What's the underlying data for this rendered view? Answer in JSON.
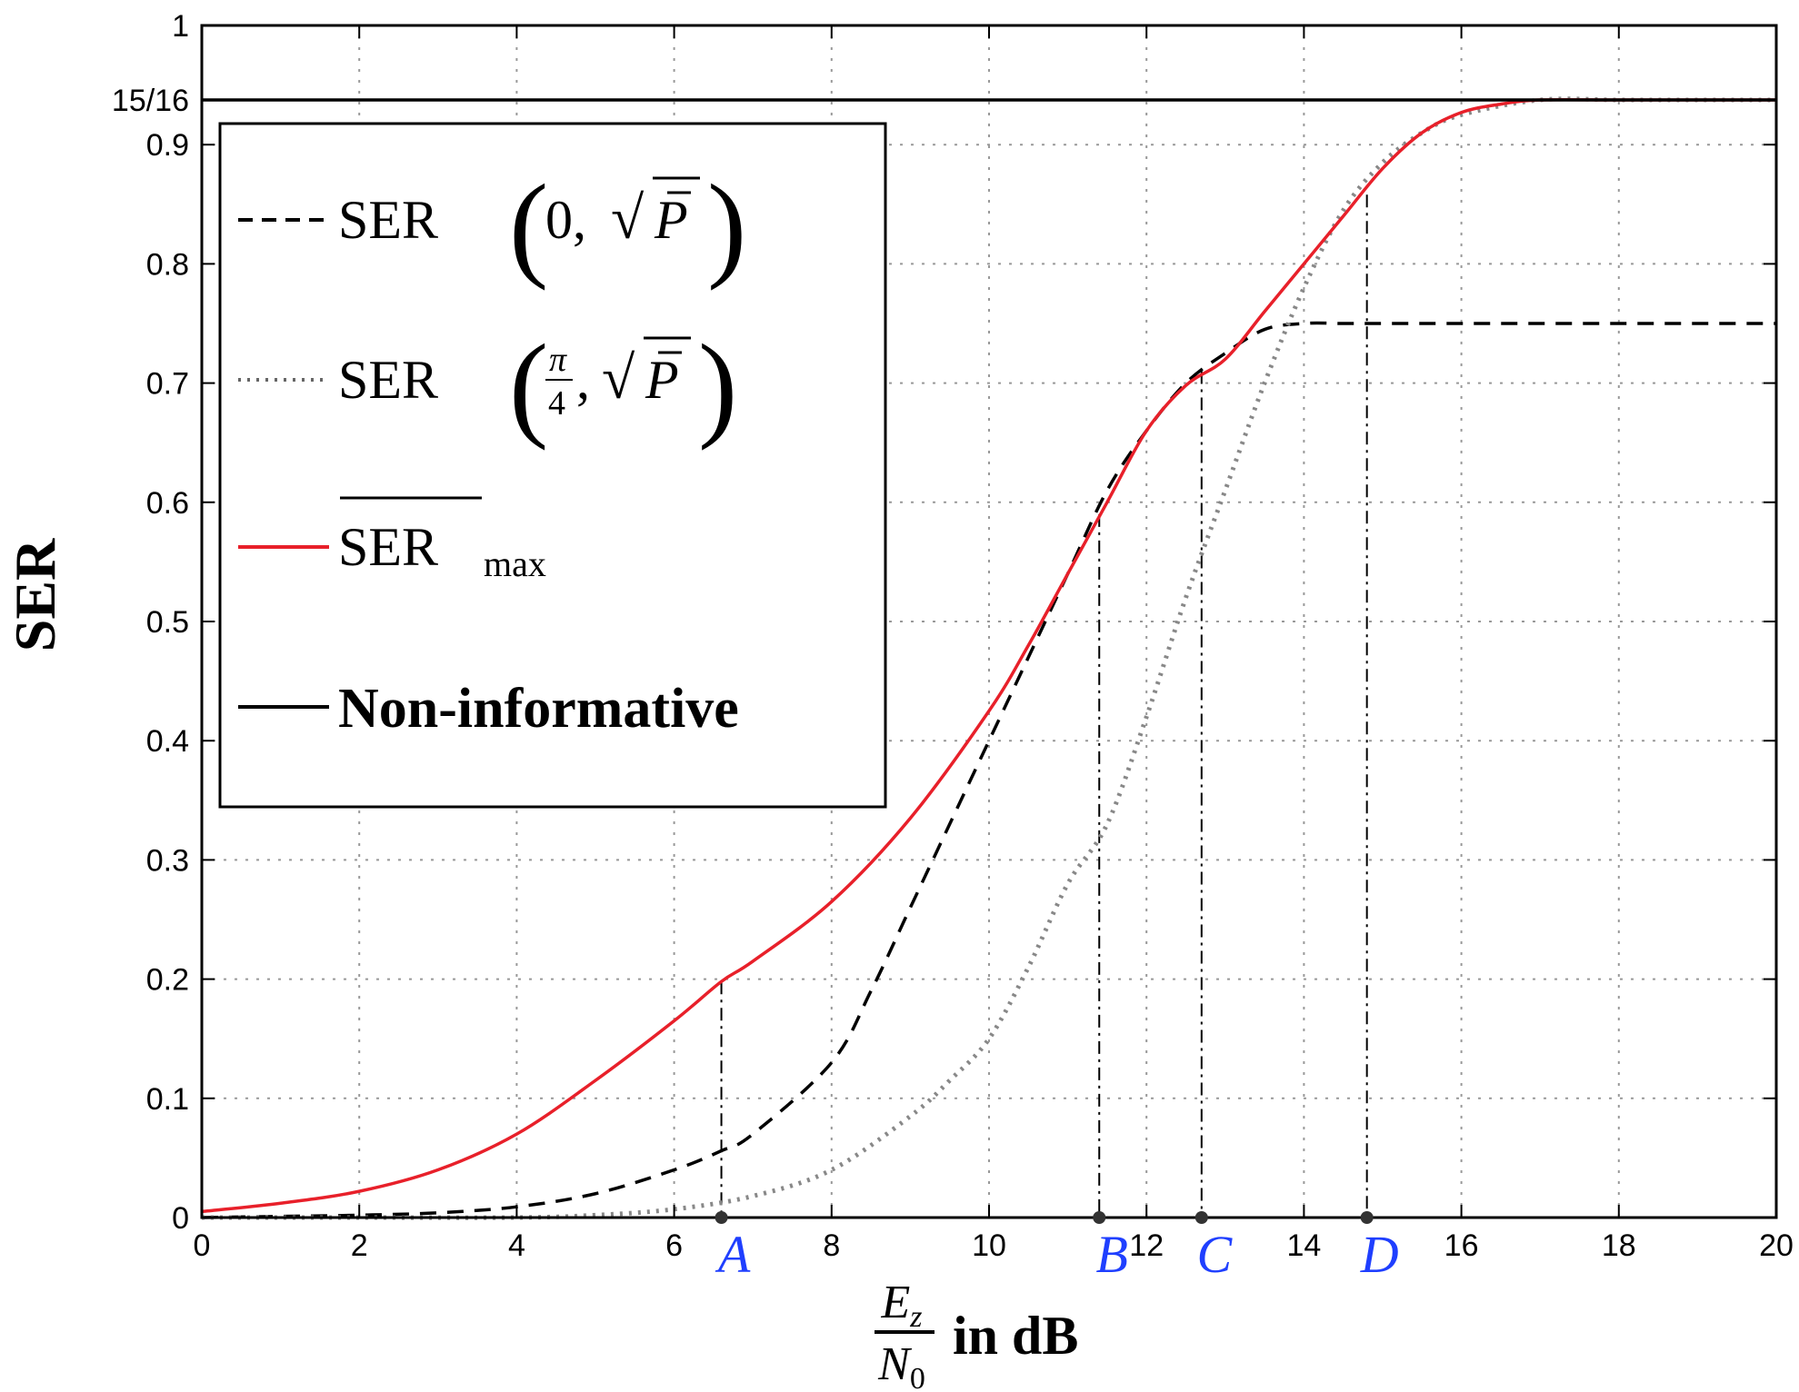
{
  "chart_data": {
    "type": "line",
    "ylabel": "SER",
    "xlabel_frac_num": "E",
    "xlabel_frac_num_sub": "z",
    "xlabel_frac_den": "N",
    "xlabel_frac_den_sub": "0",
    "xlabel_suffix": "in dB",
    "xlim": [
      0,
      20
    ],
    "ylim": [
      0,
      1
    ],
    "grid": true,
    "legend_position": "top-left",
    "xticks": [
      0,
      2,
      4,
      6,
      8,
      10,
      12,
      14,
      16,
      18,
      20
    ],
    "yticks": [
      0,
      0.1,
      0.2,
      0.3,
      0.4,
      0.5,
      0.6,
      0.7,
      0.8,
      0.9,
      1
    ],
    "ytick_labels": [
      "0",
      "0.1",
      "0.2",
      "0.3",
      "0.4",
      "0.5",
      "0.6",
      "0.7",
      "0.8",
      "0.9",
      "1"
    ],
    "xtick_labels": [
      "0",
      "2",
      "4",
      "6",
      "8",
      "10",
      "12",
      "14",
      "16",
      "18",
      "20"
    ],
    "extra_ytick": {
      "value": 0.9375,
      "label": "15/16"
    },
    "legend": [
      {
        "label": "SER (0, √P̄)",
        "style": "dashed",
        "color": "#000000"
      },
      {
        "label": "SER (π/4, √P̄)",
        "style": "dotted",
        "color": "#888888"
      },
      {
        "label": "SER_max",
        "style": "solid",
        "color": "#e8202a"
      },
      {
        "label": "Non-informative",
        "style": "solid",
        "color": "#000000"
      }
    ],
    "legend_text": {
      "ser": "SER",
      "zero": "0,",
      "pi": "π",
      "four": "4",
      "comma": ",",
      "sqrt": "√",
      "p": "P",
      "max": "max",
      "noninformative": "Non-informative"
    },
    "series": [
      {
        "name": "SER(0, sqrt(P))",
        "style": "dashed",
        "color": "#000000",
        "x": [
          0,
          1,
          2,
          3,
          4,
          5,
          6,
          6.6,
          7,
          8,
          8.5,
          9,
          9.5,
          10,
          10.5,
          11,
          11.5,
          12,
          12.5,
          13,
          13.5,
          14,
          14.5,
          15,
          16,
          17,
          18,
          19,
          20
        ],
        "y": [
          0,
          0.001,
          0.002,
          0.004,
          0.009,
          0.02,
          0.04,
          0.056,
          0.07,
          0.13,
          0.19,
          0.26,
          0.33,
          0.4,
          0.47,
          0.54,
          0.61,
          0.66,
          0.7,
          0.725,
          0.745,
          0.75,
          0.75,
          0.75,
          0.75,
          0.75,
          0.75,
          0.75,
          0.75
        ]
      },
      {
        "name": "SER(pi/4, sqrt(P))",
        "style": "dotted",
        "color": "#888888",
        "x": [
          0,
          2,
          4,
          5,
          6,
          7,
          8,
          9,
          9.5,
          10,
          10.5,
          11,
          11.5,
          12,
          12.5,
          13,
          13.5,
          14,
          14.5,
          15,
          15.5,
          16,
          17,
          18,
          19,
          20
        ],
        "y": [
          0,
          0,
          0,
          0.002,
          0.007,
          0.018,
          0.04,
          0.085,
          0.115,
          0.15,
          0.21,
          0.28,
          0.33,
          0.42,
          0.52,
          0.61,
          0.7,
          0.78,
          0.845,
          0.885,
          0.91,
          0.925,
          0.9375,
          0.9375,
          0.9375,
          0.9375
        ]
      },
      {
        "name": "SER_max",
        "style": "solid",
        "color": "#e8202a",
        "x": [
          0,
          1,
          2,
          3,
          4,
          5,
          6,
          6.6,
          7,
          8,
          9,
          10,
          10.5,
          11,
          11.5,
          12,
          12.5,
          13,
          13.5,
          14,
          14.5,
          15,
          15.5,
          16,
          16.5,
          17,
          18,
          19,
          20
        ],
        "y": [
          0.005,
          0.012,
          0.022,
          0.04,
          0.07,
          0.115,
          0.165,
          0.198,
          0.215,
          0.265,
          0.335,
          0.425,
          0.48,
          0.54,
          0.6,
          0.66,
          0.698,
          0.72,
          0.76,
          0.8,
          0.84,
          0.88,
          0.91,
          0.927,
          0.934,
          0.9375,
          0.9375,
          0.9375,
          0.9375
        ]
      },
      {
        "name": "Non-informative",
        "style": "solid",
        "color": "#000000",
        "x": [
          0,
          20
        ],
        "y": [
          0.9375,
          0.9375
        ]
      }
    ],
    "markers": [
      {
        "label": "A",
        "x": 6.6,
        "y": 0.198
      },
      {
        "label": "B",
        "x": 11.4,
        "y": 0.59
      },
      {
        "label": "C",
        "x": 12.7,
        "y": 0.71
      },
      {
        "label": "D",
        "x": 14.8,
        "y": 0.858
      }
    ]
  }
}
